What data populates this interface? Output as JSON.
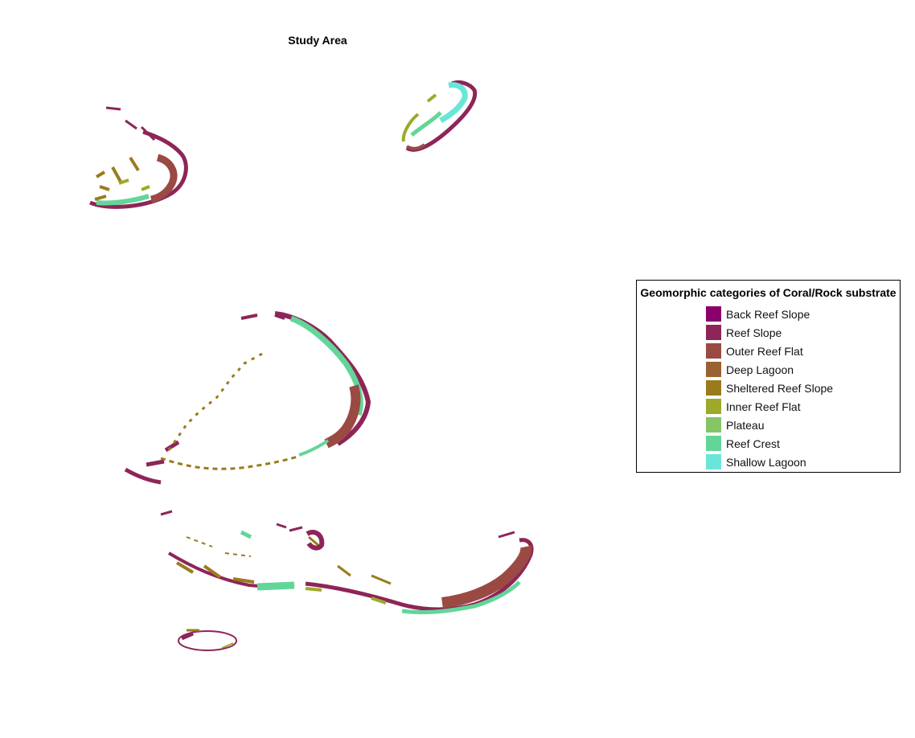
{
  "map": {
    "title": "Study Area"
  },
  "legend": {
    "title": "Geomorphic categories of Coral/Rock substrate",
    "items": [
      {
        "label": "Back Reef Slope",
        "color": "#8b006b"
      },
      {
        "label": "Reef Slope",
        "color": "#8e2558"
      },
      {
        "label": "Outer Reef Flat",
        "color": "#9a4a43"
      },
      {
        "label": "Deep Lagoon",
        "color": "#9a6131"
      },
      {
        "label": "Sheltered Reef Slope",
        "color": "#9a7b1c"
      },
      {
        "label": "Inner Reef Flat",
        "color": "#9ea92a"
      },
      {
        "label": "Plateau",
        "color": "#84c565"
      },
      {
        "label": "Reef Crest",
        "color": "#62d698"
      },
      {
        "label": "Shallow Lagoon",
        "color": "#6ae6d8"
      }
    ]
  }
}
